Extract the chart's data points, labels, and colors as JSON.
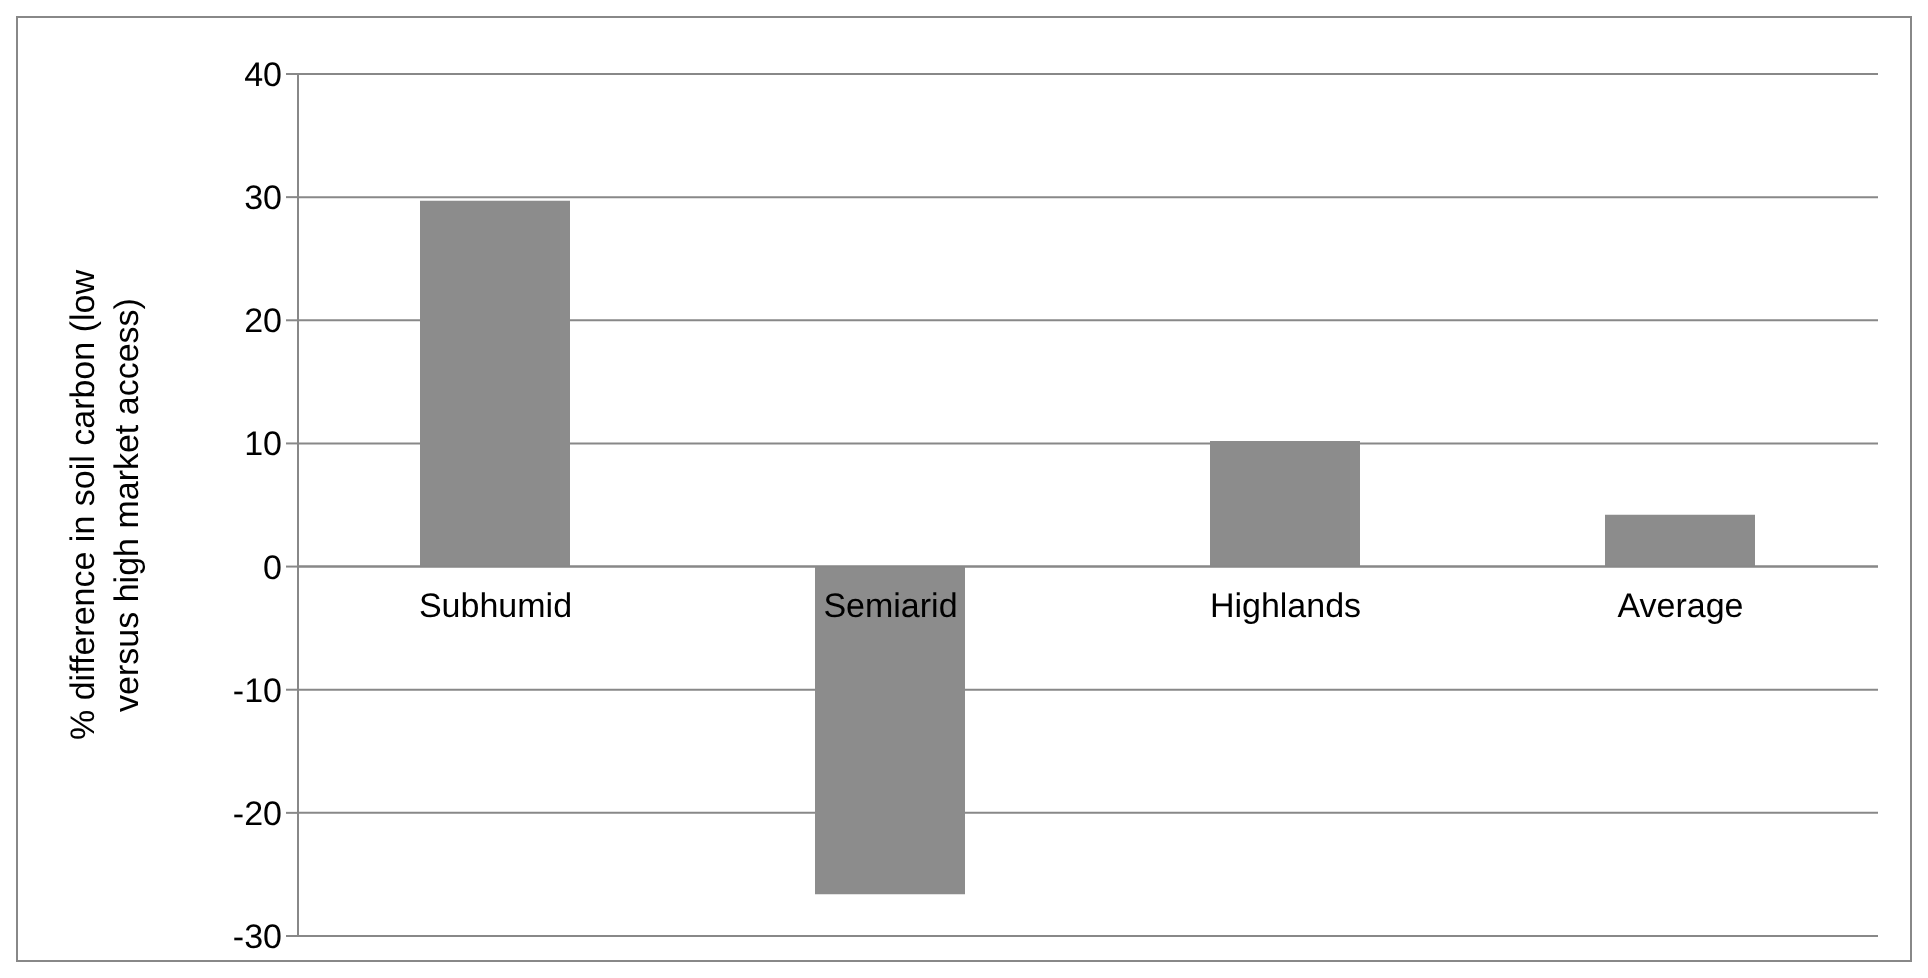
{
  "chart_data": {
    "type": "bar",
    "ylabel": "% difference in soil carbon (low versus high market access)",
    "categories": [
      "Subhumid",
      "Semiarid",
      "Highlands",
      "Average"
    ],
    "values": [
      29.7,
      -26.6,
      10.2,
      4.2
    ],
    "color": "#8c8c8c",
    "ylim": [
      -30,
      40
    ],
    "yticks": [
      -30,
      -20,
      -10,
      0,
      10,
      20,
      30,
      40
    ],
    "grid": "y"
  }
}
